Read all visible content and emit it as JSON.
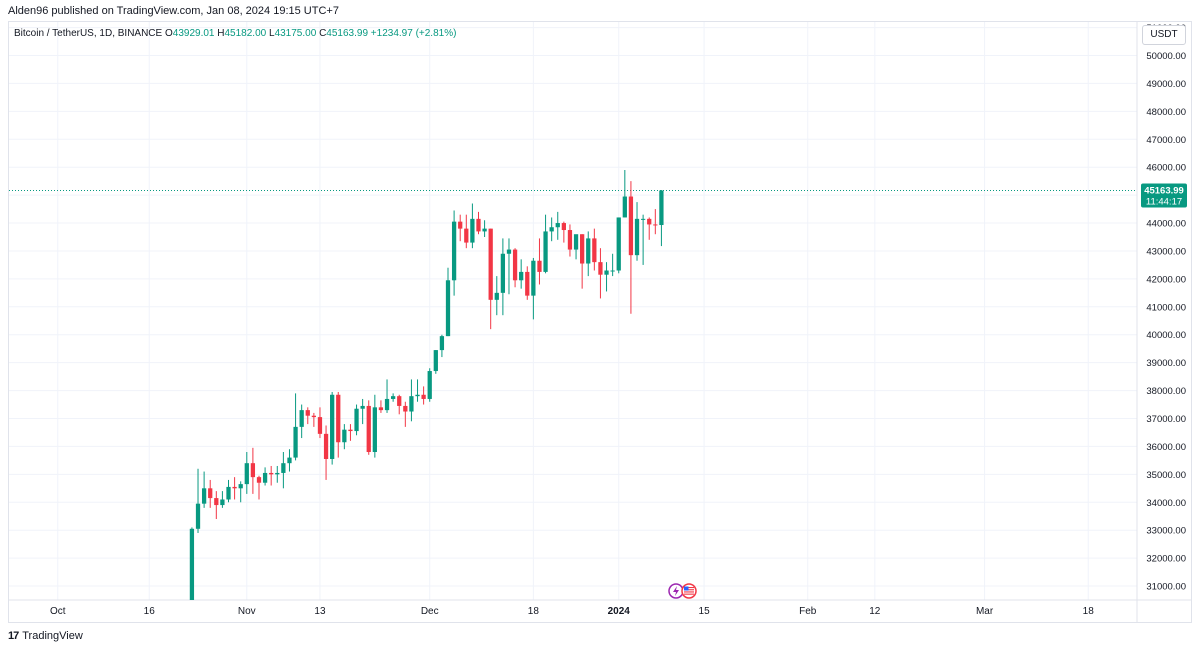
{
  "header": {
    "publisher": "Alden96 published on TradingView.com, Jan 08, 2024 19:15 UTC+7"
  },
  "legend": {
    "symbol": "Bitcoin / TetherUS, 1D, BINANCE",
    "o_label": "O",
    "o_value": "43929.01",
    "h_label": "H",
    "h_value": "45182.00",
    "l_label": "L",
    "l_value": "43175.00",
    "c_label": "C",
    "c_value": "45163.99",
    "change": "+1234.97 (+2.81%)"
  },
  "currency_button": "USDT",
  "footer": {
    "logo": "17",
    "brand": "TradingView"
  },
  "colors": {
    "up": "#089981",
    "down": "#f23645",
    "grid": "#f0f3fa",
    "price_line": "#089981"
  },
  "icons": [
    "lightning-event-icon",
    "us-flag-event-icon"
  ],
  "chart_data": {
    "type": "candlestick",
    "price_axis": {
      "ticks": [
        "31000.00",
        "32000.00",
        "33000.00",
        "34000.00",
        "35000.00",
        "36000.00",
        "37000.00",
        "38000.00",
        "39000.00",
        "40000.00",
        "41000.00",
        "42000.00",
        "43000.00",
        "44000.00",
        "45000.00",
        "46000.00",
        "47000.00",
        "48000.00",
        "49000.00",
        "50000.00",
        "51000.00"
      ],
      "range": [
        30500,
        51200
      ]
    },
    "time_axis": {
      "ticks": [
        {
          "label": "Oct",
          "date": "2023-10-01",
          "bold": false
        },
        {
          "label": "16",
          "date": "2023-10-16",
          "bold": false
        },
        {
          "label": "Nov",
          "date": "2023-11-01",
          "bold": false
        },
        {
          "label": "13",
          "date": "2023-11-13",
          "bold": false
        },
        {
          "label": "Dec",
          "date": "2023-12-01",
          "bold": false
        },
        {
          "label": "18",
          "date": "2023-12-18",
          "bold": false
        },
        {
          "label": "2024",
          "date": "2024-01-01",
          "bold": true
        },
        {
          "label": "15",
          "date": "2024-01-15",
          "bold": false
        },
        {
          "label": "Feb",
          "date": "2024-02-01",
          "bold": false
        },
        {
          "label": "12",
          "date": "2024-02-12",
          "bold": false
        },
        {
          "label": "Mar",
          "date": "2024-03-01",
          "bold": false
        },
        {
          "label": "18",
          "date": "2024-03-18",
          "bold": false
        }
      ],
      "range": [
        "2023-09-23",
        "2024-03-26"
      ]
    },
    "last_price": {
      "value": "45163.99",
      "countdown": "11:44:17"
    },
    "candles": [
      {
        "date": "2023-10-23",
        "o": 30500,
        "h": 33100,
        "l": 30400,
        "c": 33050
      },
      {
        "date": "2023-10-24",
        "o": 33050,
        "h": 35200,
        "l": 32900,
        "c": 33950
      },
      {
        "date": "2023-10-25",
        "o": 33950,
        "h": 35100,
        "l": 33800,
        "c": 34500
      },
      {
        "date": "2023-10-26",
        "o": 34500,
        "h": 34800,
        "l": 33800,
        "c": 34150
      },
      {
        "date": "2023-10-27",
        "o": 34150,
        "h": 34400,
        "l": 33400,
        "c": 33900
      },
      {
        "date": "2023-10-28",
        "o": 33900,
        "h": 34400,
        "l": 33800,
        "c": 34100
      },
      {
        "date": "2023-10-29",
        "o": 34100,
        "h": 34800,
        "l": 34000,
        "c": 34550
      },
      {
        "date": "2023-10-30",
        "o": 34550,
        "h": 34900,
        "l": 34100,
        "c": 34500
      },
      {
        "date": "2023-10-31",
        "o": 34500,
        "h": 34750,
        "l": 34000,
        "c": 34650
      },
      {
        "date": "2023-11-01",
        "o": 34650,
        "h": 35800,
        "l": 34300,
        "c": 35400
      },
      {
        "date": "2023-11-02",
        "o": 35400,
        "h": 35950,
        "l": 34300,
        "c": 34900
      },
      {
        "date": "2023-11-03",
        "o": 34900,
        "h": 34950,
        "l": 34100,
        "c": 34700
      },
      {
        "date": "2023-11-04",
        "o": 34700,
        "h": 35250,
        "l": 34600,
        "c": 35050
      },
      {
        "date": "2023-11-05",
        "o": 35050,
        "h": 35300,
        "l": 34600,
        "c": 35000
      },
      {
        "date": "2023-11-06",
        "o": 35000,
        "h": 35300,
        "l": 34700,
        "c": 35050
      },
      {
        "date": "2023-11-07",
        "o": 35050,
        "h": 35800,
        "l": 34500,
        "c": 35400
      },
      {
        "date": "2023-11-08",
        "o": 35400,
        "h": 35900,
        "l": 35100,
        "c": 35600
      },
      {
        "date": "2023-11-09",
        "o": 35600,
        "h": 37900,
        "l": 35500,
        "c": 36700
      },
      {
        "date": "2023-11-10",
        "o": 36700,
        "h": 37500,
        "l": 36300,
        "c": 37300
      },
      {
        "date": "2023-11-11",
        "o": 37300,
        "h": 37400,
        "l": 36800,
        "c": 37100
      },
      {
        "date": "2023-11-12",
        "o": 37100,
        "h": 37200,
        "l": 36700,
        "c": 37050
      },
      {
        "date": "2023-11-13",
        "o": 37050,
        "h": 37400,
        "l": 36300,
        "c": 36450
      },
      {
        "date": "2023-11-14",
        "o": 36450,
        "h": 36750,
        "l": 34800,
        "c": 35550
      },
      {
        "date": "2023-11-15",
        "o": 35550,
        "h": 37950,
        "l": 35350,
        "c": 37850
      },
      {
        "date": "2023-11-16",
        "o": 37850,
        "h": 37950,
        "l": 35600,
        "c": 36150
      },
      {
        "date": "2023-11-17",
        "o": 36150,
        "h": 36800,
        "l": 35900,
        "c": 36600
      },
      {
        "date": "2023-11-18",
        "o": 36600,
        "h": 36800,
        "l": 36200,
        "c": 36550
      },
      {
        "date": "2023-11-19",
        "o": 36550,
        "h": 37500,
        "l": 36400,
        "c": 37350
      },
      {
        "date": "2023-11-20",
        "o": 37350,
        "h": 37700,
        "l": 36800,
        "c": 37450
      },
      {
        "date": "2023-11-21",
        "o": 37450,
        "h": 37650,
        "l": 35700,
        "c": 35800
      },
      {
        "date": "2023-11-22",
        "o": 35800,
        "h": 37850,
        "l": 35600,
        "c": 37400
      },
      {
        "date": "2023-11-23",
        "o": 37400,
        "h": 37650,
        "l": 37200,
        "c": 37300
      },
      {
        "date": "2023-11-24",
        "o": 37300,
        "h": 38400,
        "l": 37200,
        "c": 37700
      },
      {
        "date": "2023-11-25",
        "o": 37700,
        "h": 37900,
        "l": 37600,
        "c": 37800
      },
      {
        "date": "2023-11-26",
        "o": 37800,
        "h": 37850,
        "l": 37150,
        "c": 37450
      },
      {
        "date": "2023-11-27",
        "o": 37450,
        "h": 37600,
        "l": 36700,
        "c": 37250
      },
      {
        "date": "2023-11-28",
        "o": 37250,
        "h": 38400,
        "l": 36900,
        "c": 37800
      },
      {
        "date": "2023-11-29",
        "o": 37800,
        "h": 38400,
        "l": 37600,
        "c": 37850
      },
      {
        "date": "2023-11-30",
        "o": 37850,
        "h": 38150,
        "l": 37500,
        "c": 37700
      },
      {
        "date": "2023-12-01",
        "o": 37700,
        "h": 38800,
        "l": 37600,
        "c": 38700
      },
      {
        "date": "2023-12-02",
        "o": 38700,
        "h": 39450,
        "l": 38600,
        "c": 39450
      },
      {
        "date": "2023-12-03",
        "o": 39450,
        "h": 40000,
        "l": 39200,
        "c": 39950
      },
      {
        "date": "2023-12-04",
        "o": 39950,
        "h": 42400,
        "l": 39950,
        "c": 41950
      },
      {
        "date": "2023-12-05",
        "o": 41950,
        "h": 44450,
        "l": 41400,
        "c": 44050
      },
      {
        "date": "2023-12-06",
        "o": 44050,
        "h": 44300,
        "l": 43350,
        "c": 43800
      },
      {
        "date": "2023-12-07",
        "o": 43800,
        "h": 44300,
        "l": 43100,
        "c": 43300
      },
      {
        "date": "2023-12-08",
        "o": 43300,
        "h": 44700,
        "l": 43100,
        "c": 44150
      },
      {
        "date": "2023-12-09",
        "o": 44150,
        "h": 44400,
        "l": 43600,
        "c": 43700
      },
      {
        "date": "2023-12-10",
        "o": 43700,
        "h": 44100,
        "l": 43500,
        "c": 43800
      },
      {
        "date": "2023-12-11",
        "o": 43800,
        "h": 43800,
        "l": 40200,
        "c": 41250
      },
      {
        "date": "2023-12-12",
        "o": 41250,
        "h": 42100,
        "l": 40700,
        "c": 41500
      },
      {
        "date": "2023-12-13",
        "o": 41500,
        "h": 43450,
        "l": 40700,
        "c": 42900
      },
      {
        "date": "2023-12-14",
        "o": 42900,
        "h": 43450,
        "l": 41450,
        "c": 43050
      },
      {
        "date": "2023-12-15",
        "o": 43050,
        "h": 43100,
        "l": 41700,
        "c": 41950
      },
      {
        "date": "2023-12-16",
        "o": 41950,
        "h": 42700,
        "l": 41650,
        "c": 42250
      },
      {
        "date": "2023-12-17",
        "o": 42250,
        "h": 42450,
        "l": 41250,
        "c": 41400
      },
      {
        "date": "2023-12-18",
        "o": 41400,
        "h": 42750,
        "l": 40550,
        "c": 42650
      },
      {
        "date": "2023-12-19",
        "o": 42650,
        "h": 43450,
        "l": 41800,
        "c": 42250
      },
      {
        "date": "2023-12-20",
        "o": 42250,
        "h": 44300,
        "l": 42200,
        "c": 43700
      },
      {
        "date": "2023-12-21",
        "o": 43700,
        "h": 44200,
        "l": 43350,
        "c": 43850
      },
      {
        "date": "2023-12-22",
        "o": 43850,
        "h": 44400,
        "l": 43400,
        "c": 44000
      },
      {
        "date": "2023-12-23",
        "o": 44000,
        "h": 44050,
        "l": 43300,
        "c": 43750
      },
      {
        "date": "2023-12-24",
        "o": 43750,
        "h": 43950,
        "l": 42800,
        "c": 43050
      },
      {
        "date": "2023-12-25",
        "o": 43050,
        "h": 43550,
        "l": 42700,
        "c": 43600
      },
      {
        "date": "2023-12-26",
        "o": 43600,
        "h": 43600,
        "l": 41650,
        "c": 42550
      },
      {
        "date": "2023-12-27",
        "o": 42550,
        "h": 43700,
        "l": 42100,
        "c": 43450
      },
      {
        "date": "2023-12-28",
        "o": 43450,
        "h": 43800,
        "l": 42300,
        "c": 42600
      },
      {
        "date": "2023-12-29",
        "o": 42600,
        "h": 43100,
        "l": 41300,
        "c": 42150
      },
      {
        "date": "2023-12-30",
        "o": 42150,
        "h": 42600,
        "l": 41550,
        "c": 42300
      },
      {
        "date": "2023-12-31",
        "o": 42300,
        "h": 42900,
        "l": 42100,
        "c": 42300
      },
      {
        "date": "2024-01-01",
        "o": 42300,
        "h": 44200,
        "l": 42200,
        "c": 44200
      },
      {
        "date": "2024-01-02",
        "o": 44200,
        "h": 45900,
        "l": 44200,
        "c": 44950
      },
      {
        "date": "2024-01-03",
        "o": 44950,
        "h": 45500,
        "l": 40750,
        "c": 42850
      },
      {
        "date": "2024-01-04",
        "o": 42850,
        "h": 44750,
        "l": 42650,
        "c": 44150
      },
      {
        "date": "2024-01-05",
        "o": 44150,
        "h": 44300,
        "l": 42500,
        "c": 44150
      },
      {
        "date": "2024-01-06",
        "o": 44150,
        "h": 44200,
        "l": 43400,
        "c": 43950
      },
      {
        "date": "2024-01-07",
        "o": 43950,
        "h": 44500,
        "l": 43600,
        "c": 43929.01
      },
      {
        "date": "2024-01-08",
        "o": 43929.01,
        "h": 45182,
        "l": 43175,
        "c": 45163.99
      }
    ]
  }
}
